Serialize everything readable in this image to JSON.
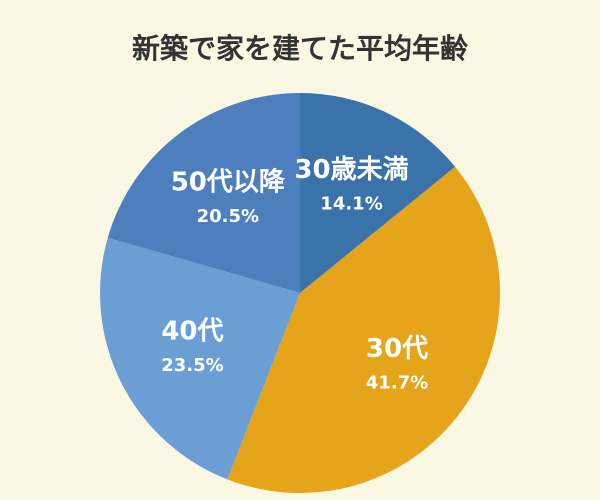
{
  "chart_data": {
    "type": "pie",
    "title": "新築で家を建てた平均年齢",
    "categories": [
      "30歳未満",
      "30代",
      "40代",
      "50代以降"
    ],
    "values": [
      14.1,
      41.7,
      23.5,
      20.5
    ],
    "value_labels": [
      "14.1%",
      "41.7%",
      "23.5%",
      "20.5%"
    ],
    "colors": [
      "#3a72aa",
      "#e5a41a",
      "#6b9fd4",
      "#4d7fbf"
    ]
  }
}
